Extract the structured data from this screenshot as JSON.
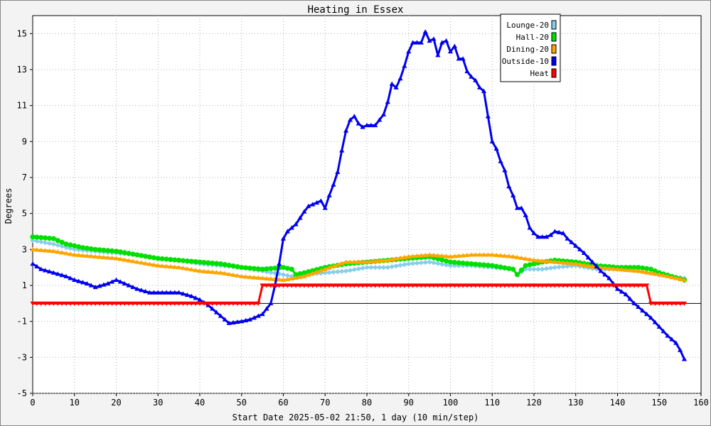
{
  "chart_data": {
    "type": "line",
    "title": "Heating in Essex",
    "xlabel": "Start Date 2025-05-02 21:50, 1 day (10 min/step)",
    "ylabel": "Degrees",
    "xlim": [
      0,
      160
    ],
    "ylim": [
      -5,
      16
    ],
    "x_ticks": [
      0,
      10,
      20,
      30,
      40,
      50,
      60,
      70,
      80,
      90,
      100,
      110,
      120,
      130,
      140,
      150,
      160
    ],
    "y_ticks": [
      -5,
      -3,
      -1,
      1,
      3,
      5,
      7,
      9,
      11,
      13,
      15
    ],
    "grid": true,
    "legend_position": "top-right",
    "series": [
      {
        "name": "Lounge-20",
        "color": "#87ceeb",
        "marker": "diamond",
        "points": [
          [
            0,
            3.5
          ],
          [
            5,
            3.3
          ],
          [
            10,
            3.0
          ],
          [
            15,
            2.9
          ],
          [
            20,
            2.8
          ],
          [
            25,
            2.7
          ],
          [
            30,
            2.5
          ],
          [
            35,
            2.4
          ],
          [
            40,
            2.2
          ],
          [
            45,
            2.1
          ],
          [
            50,
            2.0
          ],
          [
            55,
            1.8
          ],
          [
            60,
            1.6
          ],
          [
            62,
            1.5
          ],
          [
            65,
            1.6
          ],
          [
            70,
            1.7
          ],
          [
            75,
            1.8
          ],
          [
            80,
            2.0
          ],
          [
            85,
            2.0
          ],
          [
            90,
            2.2
          ],
          [
            95,
            2.3
          ],
          [
            100,
            2.1
          ],
          [
            105,
            2.1
          ],
          [
            110,
            2.0
          ],
          [
            115,
            1.9
          ],
          [
            116,
            1.6
          ],
          [
            118,
            1.9
          ],
          [
            122,
            1.9
          ],
          [
            125,
            2.0
          ],
          [
            130,
            2.1
          ],
          [
            135,
            1.9
          ],
          [
            140,
            1.9
          ],
          [
            145,
            1.8
          ],
          [
            150,
            1.6
          ],
          [
            153,
            1.5
          ],
          [
            156,
            1.4
          ]
        ]
      },
      {
        "name": "Hall-20",
        "color": "#00e000",
        "marker": "circle",
        "points": [
          [
            0,
            3.7
          ],
          [
            5,
            3.6
          ],
          [
            8,
            3.3
          ],
          [
            12,
            3.1
          ],
          [
            15,
            3.0
          ],
          [
            20,
            2.9
          ],
          [
            25,
            2.7
          ],
          [
            30,
            2.5
          ],
          [
            35,
            2.4
          ],
          [
            40,
            2.3
          ],
          [
            45,
            2.2
          ],
          [
            50,
            2.0
          ],
          [
            55,
            1.9
          ],
          [
            60,
            2.0
          ],
          [
            62,
            1.9
          ],
          [
            63,
            1.6
          ],
          [
            65,
            1.7
          ],
          [
            70,
            2.0
          ],
          [
            75,
            2.2
          ],
          [
            80,
            2.3
          ],
          [
            85,
            2.4
          ],
          [
            90,
            2.5
          ],
          [
            95,
            2.6
          ],
          [
            100,
            2.3
          ],
          [
            105,
            2.2
          ],
          [
            110,
            2.1
          ],
          [
            115,
            1.9
          ],
          [
            116,
            1.6
          ],
          [
            118,
            2.1
          ],
          [
            122,
            2.3
          ],
          [
            125,
            2.4
          ],
          [
            130,
            2.3
          ],
          [
            135,
            2.1
          ],
          [
            140,
            2.0
          ],
          [
            145,
            2.0
          ],
          [
            148,
            1.9
          ],
          [
            150,
            1.7
          ],
          [
            153,
            1.5
          ],
          [
            156,
            1.3
          ]
        ]
      },
      {
        "name": "Dining-20",
        "color": "#ffa500",
        "marker": "triangle",
        "points": [
          [
            0,
            3.0
          ],
          [
            5,
            2.9
          ],
          [
            10,
            2.7
          ],
          [
            15,
            2.6
          ],
          [
            20,
            2.5
          ],
          [
            25,
            2.3
          ],
          [
            30,
            2.1
          ],
          [
            35,
            2.0
          ],
          [
            40,
            1.8
          ],
          [
            45,
            1.7
          ],
          [
            50,
            1.5
          ],
          [
            55,
            1.4
          ],
          [
            60,
            1.3
          ],
          [
            65,
            1.5
          ],
          [
            70,
            1.9
          ],
          [
            75,
            2.3
          ],
          [
            80,
            2.3
          ],
          [
            85,
            2.4
          ],
          [
            90,
            2.6
          ],
          [
            95,
            2.7
          ],
          [
            100,
            2.6
          ],
          [
            105,
            2.7
          ],
          [
            110,
            2.7
          ],
          [
            115,
            2.6
          ],
          [
            120,
            2.4
          ],
          [
            125,
            2.3
          ],
          [
            130,
            2.2
          ],
          [
            135,
            2.0
          ],
          [
            140,
            1.9
          ],
          [
            145,
            1.8
          ],
          [
            150,
            1.6
          ],
          [
            156,
            1.3
          ]
        ]
      },
      {
        "name": "Outside-10",
        "color": "#0000ee",
        "marker": "triangle",
        "points": [
          [
            0,
            2.2
          ],
          [
            2,
            1.9
          ],
          [
            5,
            1.7
          ],
          [
            8,
            1.5
          ],
          [
            10,
            1.3
          ],
          [
            13,
            1.1
          ],
          [
            15,
            0.9
          ],
          [
            18,
            1.1
          ],
          [
            20,
            1.3
          ],
          [
            23,
            1.0
          ],
          [
            25,
            0.8
          ],
          [
            28,
            0.6
          ],
          [
            30,
            0.6
          ],
          [
            35,
            0.6
          ],
          [
            38,
            0.4
          ],
          [
            40,
            0.2
          ],
          [
            42,
            -0.1
          ],
          [
            44,
            -0.5
          ],
          [
            46,
            -0.9
          ],
          [
            47,
            -1.1
          ],
          [
            50,
            -1.0
          ],
          [
            52,
            -0.9
          ],
          [
            55,
            -0.6
          ],
          [
            57,
            0.0
          ],
          [
            58,
            1.0
          ],
          [
            59,
            2.2
          ],
          [
            60,
            3.6
          ],
          [
            61,
            4.0
          ],
          [
            63,
            4.4
          ],
          [
            65,
            5.1
          ],
          [
            66,
            5.4
          ],
          [
            68,
            5.6
          ],
          [
            69,
            5.7
          ],
          [
            70,
            5.3
          ],
          [
            71,
            6.0
          ],
          [
            72,
            6.6
          ],
          [
            73,
            7.3
          ],
          [
            74,
            8.5
          ],
          [
            75,
            9.6
          ],
          [
            76,
            10.2
          ],
          [
            77,
            10.4
          ],
          [
            78,
            10.0
          ],
          [
            79,
            9.8
          ],
          [
            80,
            9.9
          ],
          [
            82,
            9.9
          ],
          [
            84,
            10.5
          ],
          [
            85,
            11.2
          ],
          [
            86,
            12.2
          ],
          [
            87,
            12.0
          ],
          [
            88,
            12.5
          ],
          [
            89,
            13.2
          ],
          [
            90,
            14.0
          ],
          [
            91,
            14.5
          ],
          [
            93,
            14.5
          ],
          [
            94,
            15.1
          ],
          [
            95,
            14.6
          ],
          [
            96,
            14.7
          ],
          [
            97,
            13.8
          ],
          [
            98,
            14.5
          ],
          [
            99,
            14.6
          ],
          [
            100,
            14.0
          ],
          [
            101,
            14.3
          ],
          [
            102,
            13.6
          ],
          [
            103,
            13.6
          ],
          [
            104,
            12.9
          ],
          [
            105,
            12.6
          ],
          [
            106,
            12.4
          ],
          [
            107,
            12.0
          ],
          [
            108,
            11.8
          ],
          [
            110,
            9.0
          ],
          [
            111,
            8.6
          ],
          [
            112,
            7.9
          ],
          [
            113,
            7.4
          ],
          [
            114,
            6.5
          ],
          [
            115,
            6.0
          ],
          [
            116,
            5.3
          ],
          [
            117,
            5.3
          ],
          [
            118,
            4.9
          ],
          [
            119,
            4.2
          ],
          [
            120,
            3.9
          ],
          [
            121,
            3.7
          ],
          [
            123,
            3.7
          ],
          [
            124,
            3.8
          ],
          [
            125,
            4.0
          ],
          [
            127,
            3.9
          ],
          [
            128,
            3.6
          ],
          [
            130,
            3.2
          ],
          [
            132,
            2.8
          ],
          [
            134,
            2.3
          ],
          [
            136,
            1.8
          ],
          [
            138,
            1.4
          ],
          [
            140,
            0.8
          ],
          [
            142,
            0.5
          ],
          [
            144,
            0.0
          ],
          [
            146,
            -0.4
          ],
          [
            148,
            -0.8
          ],
          [
            150,
            -1.3
          ],
          [
            152,
            -1.8
          ],
          [
            154,
            -2.2
          ],
          [
            155,
            -2.6
          ],
          [
            156,
            -3.1
          ]
        ]
      },
      {
        "name": "Heat",
        "color": "#ff0000",
        "marker": "triangle-down",
        "points": [
          [
            0,
            0
          ],
          [
            54,
            0
          ],
          [
            55,
            1
          ],
          [
            147,
            1
          ],
          [
            148,
            0
          ],
          [
            156,
            0
          ]
        ]
      }
    ]
  }
}
